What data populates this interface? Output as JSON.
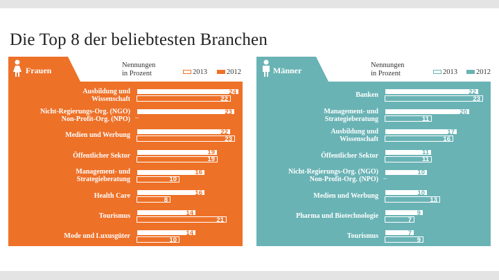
{
  "title": "Die Top 8 der beliebtesten Branchen",
  "units_line1": "Nennungen",
  "units_line2": "in Prozent",
  "legend": [
    "2013",
    "2012"
  ],
  "colors": {
    "women": "#ee7128",
    "men": "#6ab3b5",
    "grey": "#e4e4e4"
  },
  "panels": [
    {
      "label": "Frauen",
      "icon": "female-person-icon"
    },
    {
      "label": "Männer",
      "icon": "male-person-icon"
    }
  ],
  "chart_data": [
    {
      "type": "bar",
      "title": "Frauen",
      "unit": "Nennungen in Prozent",
      "categories": [
        [
          "Ausbildung und",
          "Wissenschaft"
        ],
        [
          "Nicht-Regierungs-Org. (NGO)",
          "Non-Profit-Org. (NPO)"
        ],
        [
          "Medien und Werbung"
        ],
        [
          "Öffentlicher Sektor"
        ],
        [
          "Management- und",
          "Strategieberatung"
        ],
        [
          "Health Care"
        ],
        [
          "Tourismus"
        ],
        [
          "Mode und Luxusgüter"
        ]
      ],
      "series": [
        {
          "name": "2013",
          "values": [
            24,
            23,
            22,
            19,
            16,
            16,
            14,
            14
          ]
        },
        {
          "name": "2012",
          "values": [
            22,
            null,
            23,
            19,
            10,
            8,
            21,
            10
          ]
        }
      ],
      "missing_marker": "–",
      "xlim": [
        0,
        24
      ]
    },
    {
      "type": "bar",
      "title": "Männer",
      "unit": "Nennungen in Prozent",
      "categories": [
        [
          "Banken"
        ],
        [
          "Management- und",
          "Strategieberatung"
        ],
        [
          "Ausbildung und",
          "Wissenschaft"
        ],
        [
          "Öffentlicher Sektor"
        ],
        [
          "Nicht-Regierungs-Org. (NGO)",
          "Non-Profit-Org. (NPO)"
        ],
        [
          "Medien und Werbung"
        ],
        [
          "Pharma und Biotechnologie"
        ],
        [
          "Tourismus"
        ]
      ],
      "series": [
        {
          "name": "2013",
          "values": [
            22,
            20,
            17,
            11,
            10,
            10,
            9,
            7
          ]
        },
        {
          "name": "2012",
          "values": [
            23,
            11,
            16,
            11,
            null,
            13,
            7,
            9
          ]
        }
      ],
      "missing_marker": "–",
      "xlim": [
        0,
        24
      ]
    }
  ]
}
